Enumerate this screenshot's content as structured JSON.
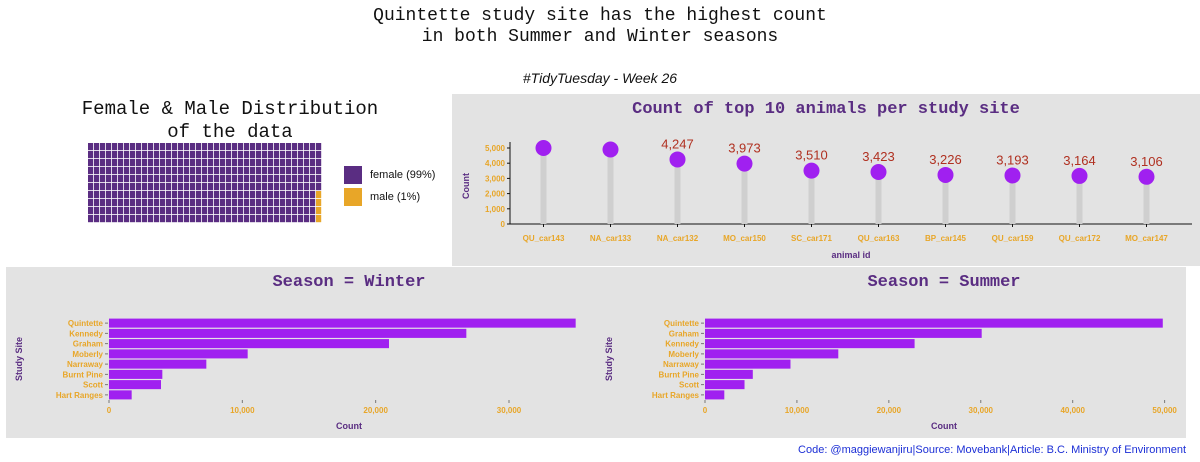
{
  "header": {
    "title_line1": "Quintette study site has the highest count",
    "title_line2": "in both Summer and Winter seasons",
    "subtitle": "#TidyTuesday - Week 26"
  },
  "colors": {
    "purple": "#a020f0",
    "dark_purple": "#5a2d82",
    "orange": "#e8a628",
    "panel": "#e3e3e3",
    "value_label": "#b03020",
    "footer": "#1c2fd6"
  },
  "waffle": {
    "title_line1": "Female & Male Distribution",
    "title_line2": "of the data",
    "legend": [
      {
        "label": "female (99%)",
        "color": "#5a2d82"
      },
      {
        "label": "male (1%)",
        "color": "#e8a628"
      }
    ]
  },
  "chart_data": [
    {
      "type": "waffle",
      "categories": [
        "female",
        "male"
      ],
      "values": [
        99,
        1
      ]
    },
    {
      "type": "lollipop",
      "title": "Count of top 10 animals per study site",
      "xlabel": "animal id",
      "ylabel": "Count",
      "categories": [
        "QU_car143",
        "NA_car133",
        "NA_car132",
        "MO_car150",
        "SC_car171",
        "QU_car163",
        "BP_car145",
        "QU_car159",
        "QU_car172",
        "MO_car147"
      ],
      "values": [
        5000,
        4900,
        4247,
        3973,
        3510,
        3423,
        3226,
        3193,
        3164,
        3106
      ],
      "labels": [
        "",
        "",
        "4,247",
        "3,973",
        "3,510",
        "3,423",
        "3,226",
        "3,193",
        "3,164",
        "3,106"
      ],
      "ylim": [
        0,
        5000
      ],
      "yticks": [
        0,
        1000,
        2000,
        3000,
        4000,
        5000
      ],
      "ytick_labels": [
        "0",
        "1,000",
        "2,000",
        "3,000",
        "4,000",
        "5,000"
      ]
    },
    {
      "type": "bar",
      "orientation": "horizontal",
      "title": "Season = Winter",
      "xlabel": "Count",
      "ylabel": "Study Site",
      "categories": [
        "Quintette",
        "Kennedy",
        "Graham",
        "Moberly",
        "Narraway",
        "Burnt Pine",
        "Scott",
        "Hart Ranges"
      ],
      "values": [
        35000,
        26800,
        21000,
        10400,
        7300,
        4000,
        3900,
        1700
      ],
      "xlim": [
        0,
        36000
      ],
      "xticks": [
        0,
        10000,
        20000,
        30000
      ],
      "xtick_labels": [
        "0",
        "10,000",
        "20,000",
        "30,000"
      ]
    },
    {
      "type": "bar",
      "orientation": "horizontal",
      "title": "Season = Summer",
      "xlabel": "Count",
      "ylabel": "Study Site",
      "categories": [
        "Quintette",
        "Graham",
        "Kennedy",
        "Moberly",
        "Narraway",
        "Burnt Pine",
        "Scott",
        "Hart Ranges"
      ],
      "values": [
        49800,
        30100,
        22800,
        14500,
        9300,
        5200,
        4300,
        2100
      ],
      "xlim": [
        0,
        52000
      ],
      "xticks": [
        0,
        10000,
        20000,
        30000,
        40000,
        50000
      ],
      "xtick_labels": [
        "0",
        "10,000",
        "20,000",
        "30,000",
        "40,000",
        "50,000"
      ]
    }
  ],
  "footer": {
    "credit": "Code: @maggiewanjiru|Source: Movebank|Article: B.C. Ministry of Environment"
  }
}
